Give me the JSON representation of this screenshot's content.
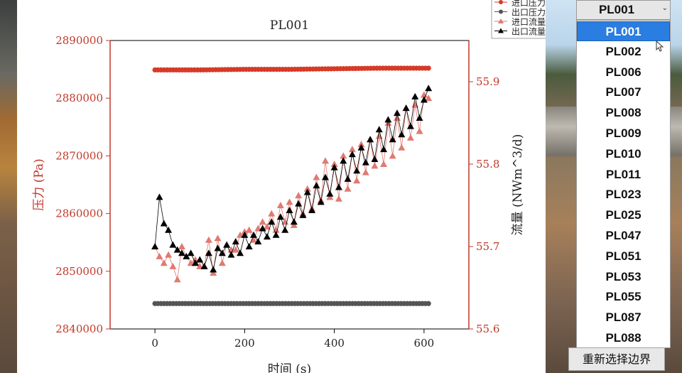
{
  "chart_data": {
    "type": "line",
    "title": "PL001",
    "xlabel": "时间 (s)",
    "ylabel_left": "压力 (Pa)",
    "ylabel_right": "流量 (NWm^3/d)",
    "xlim": [
      -100,
      700
    ],
    "ylim_left": [
      2840000,
      2890000
    ],
    "ylim_right": [
      55.6,
      55.95
    ],
    "xticks": [
      "0",
      "200",
      "400",
      "600"
    ],
    "yticks_left": [
      "2840000",
      "2850000",
      "2860000",
      "2870000",
      "2880000",
      "2890000"
    ],
    "yticks_right": [
      "55.6",
      "55.7",
      "55.8",
      "55.9"
    ],
    "legend_position": "top-right",
    "series": [
      {
        "name": "进口压力",
        "axis": "left",
        "marker": "circle",
        "color": "#d63a26",
        "x": [
          0,
          100,
          200,
          300,
          400,
          500,
          610
        ],
        "y": [
          2884900,
          2884900,
          2885000,
          2885000,
          2885100,
          2885200,
          2885200
        ]
      },
      {
        "name": "出口压力",
        "axis": "left",
        "marker": "circle",
        "color": "#555555",
        "x": [
          0,
          100,
          200,
          300,
          400,
          500,
          610
        ],
        "y": [
          2844400,
          2844400,
          2844400,
          2844400,
          2844400,
          2844400,
          2844400
        ]
      },
      {
        "name": "进口流量",
        "axis": "right",
        "marker": "triangle",
        "color": "#e07a72",
        "x": [
          0,
          10,
          20,
          30,
          40,
          50,
          60,
          70,
          80,
          90,
          100,
          110,
          120,
          130,
          140,
          150,
          160,
          170,
          180,
          190,
          200,
          210,
          220,
          230,
          240,
          250,
          260,
          270,
          280,
          290,
          300,
          310,
          320,
          330,
          340,
          350,
          360,
          370,
          380,
          390,
          400,
          410,
          420,
          430,
          440,
          450,
          460,
          470,
          480,
          490,
          500,
          510,
          520,
          530,
          540,
          550,
          560,
          570,
          580,
          590,
          600,
          610
        ],
        "y": [
          55.7,
          55.688,
          55.68,
          55.69,
          55.676,
          55.66,
          55.7,
          55.688,
          55.68,
          55.684,
          55.676,
          55.676,
          55.708,
          55.668,
          55.71,
          55.68,
          55.702,
          55.696,
          55.696,
          55.714,
          55.718,
          55.72,
          55.708,
          55.722,
          55.73,
          55.724,
          55.74,
          55.72,
          55.75,
          55.73,
          55.754,
          55.726,
          55.762,
          55.74,
          55.77,
          55.746,
          55.784,
          55.756,
          55.804,
          55.76,
          55.8,
          55.758,
          55.81,
          55.77,
          55.818,
          55.78,
          55.824,
          55.79,
          55.83,
          55.798,
          55.834,
          55.8,
          55.85,
          55.81,
          55.856,
          55.82,
          55.868,
          55.832,
          55.872,
          55.84,
          55.884,
          55.88
        ]
      },
      {
        "name": "出口流量",
        "axis": "right",
        "marker": "triangle",
        "color": "#000000",
        "x": [
          0,
          10,
          20,
          30,
          40,
          50,
          60,
          70,
          80,
          90,
          100,
          110,
          120,
          130,
          140,
          150,
          160,
          170,
          180,
          190,
          200,
          210,
          220,
          230,
          240,
          250,
          260,
          270,
          280,
          290,
          300,
          310,
          320,
          330,
          340,
          350,
          360,
          370,
          380,
          390,
          400,
          410,
          420,
          430,
          440,
          450,
          460,
          470,
          480,
          490,
          500,
          510,
          520,
          530,
          540,
          550,
          560,
          570,
          580,
          590,
          600,
          610
        ],
        "y": [
          55.7,
          55.76,
          55.728,
          55.72,
          55.702,
          55.696,
          55.692,
          55.688,
          55.692,
          55.68,
          55.684,
          55.676,
          55.692,
          55.672,
          55.698,
          55.692,
          55.702,
          55.69,
          55.706,
          55.692,
          55.714,
          55.7,
          55.714,
          55.706,
          55.722,
          55.712,
          55.73,
          55.714,
          55.736,
          55.72,
          55.744,
          55.73,
          55.752,
          55.738,
          55.766,
          55.744,
          55.774,
          55.754,
          55.784,
          55.764,
          55.796,
          55.772,
          55.804,
          55.782,
          55.812,
          55.792,
          55.82,
          55.802,
          55.83,
          55.806,
          55.842,
          55.818,
          55.854,
          55.83,
          55.862,
          55.836,
          55.868,
          55.846,
          55.882,
          55.856,
          55.878,
          55.892
        ]
      }
    ]
  },
  "dropdown": {
    "current": "PL001",
    "chevron": "⌄",
    "items": [
      "PL001",
      "PL002",
      "PL006",
      "PL007",
      "PL008",
      "PL009",
      "PL010",
      "PL011",
      "PL023",
      "PL025",
      "PL047",
      "PL051",
      "PL053",
      "PL055",
      "PL087",
      "PL088"
    ],
    "selected_index": 0
  },
  "reselect_button": "重新选择边界",
  "colors": {
    "accent_left_axis": "#c0392b",
    "selection": "#2a7de1"
  }
}
